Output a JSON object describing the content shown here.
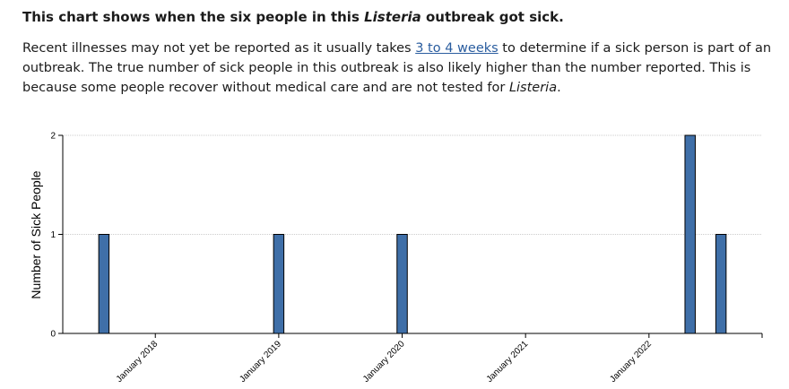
{
  "header": {
    "title": [
      "This chart shows when the six people in this ",
      "Listeria",
      " outbreak got sick."
    ],
    "paragraph": [
      "Recent illnesses may not yet be reported as it usually takes ",
      "3 to 4 weeks",
      " to determine if a sick person is part of an outbreak. The true number of sick people in this outbreak is also likely higher than the number reported. This is because some people recover without medical care and are not tested for ",
      "Listeria",
      "."
    ]
  },
  "chart_data": {
    "type": "bar",
    "y_label": "Number of Sick People",
    "x": [
      "2017-08",
      "2019-01",
      "2020-01",
      "2022-05",
      "2022-08"
    ],
    "values": [
      1,
      1,
      1,
      2,
      1
    ],
    "color": "#3f6fa8",
    "xlim": [
      "2017-04",
      "2022-12"
    ],
    "xticks": [
      {
        "value": "2018-01",
        "label": "January 2018"
      },
      {
        "value": "2019-01",
        "label": "January 2019"
      },
      {
        "value": "2020-01",
        "label": "January 2020"
      },
      {
        "value": "2021-01",
        "label": "January 2021"
      },
      {
        "value": "2022-01",
        "label": "January 2022"
      }
    ],
    "ylim": [
      0,
      2
    ],
    "yticks": [
      0,
      1,
      2
    ],
    "grid": true
  }
}
